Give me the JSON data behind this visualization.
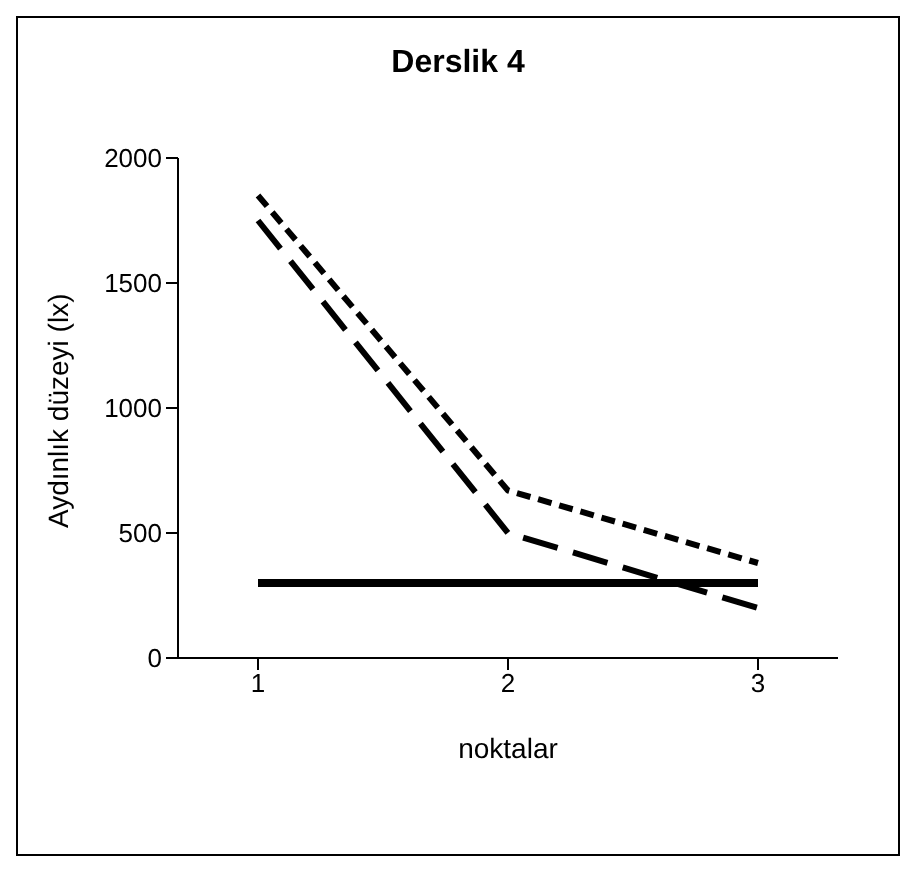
{
  "chart_data": {
    "type": "line",
    "title": "Derslik 4",
    "xlabel": "noktalar",
    "ylabel": "Aydınlık düzeyi (lx)",
    "categories": [
      "1",
      "2",
      "3"
    ],
    "series": [
      {
        "color": "#000000",
        "values": [
          1850,
          670,
          380
        ],
        "line_style": "dotted"
      },
      {
        "color": "#000000",
        "values": [
          1750,
          500,
          200
        ],
        "line_style": "dashed"
      },
      {
        "color": "#000000",
        "values": [
          300,
          300,
          300
        ],
        "line_style": "solid"
      }
    ],
    "ylim": [
      0,
      2000
    ],
    "yticks": [
      0,
      500,
      1000,
      1500,
      2000
    ],
    "grid": false,
    "legend": false,
    "marker": "none"
  }
}
